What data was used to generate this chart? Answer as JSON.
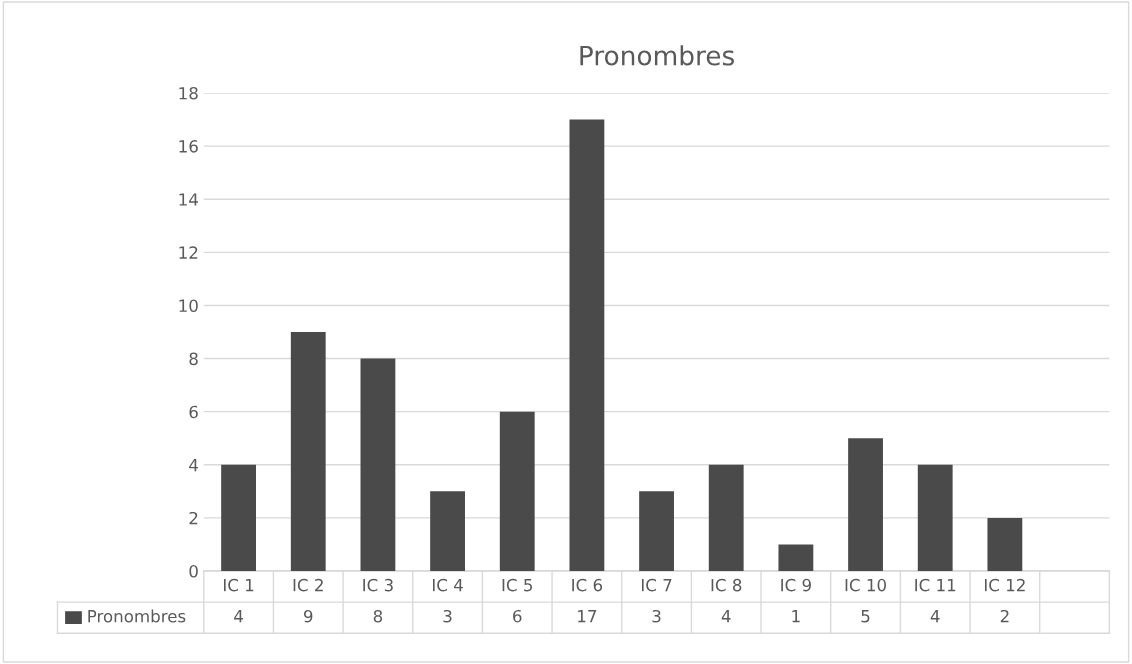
{
  "chart_data": {
    "type": "bar",
    "title": "Pronombres",
    "categories": [
      "IC 1",
      "IC 2",
      "IC 3",
      "IC 4",
      "IC 5",
      "IC 6",
      "IC 7",
      "IC 8",
      "IC 9",
      "IC 10",
      "IC 11",
      "IC 12",
      null
    ],
    "series": [
      {
        "name": "Pronombres",
        "color": "#4a4a4a",
        "values": [
          4,
          9,
          8,
          3,
          6,
          17,
          3,
          4,
          1,
          5,
          4,
          2,
          null
        ]
      }
    ],
    "ylim": [
      0,
      18
    ],
    "yticks": [
      0,
      2,
      4,
      6,
      8,
      10,
      12,
      14,
      16,
      18
    ],
    "grid": "y",
    "data_labels": true
  }
}
